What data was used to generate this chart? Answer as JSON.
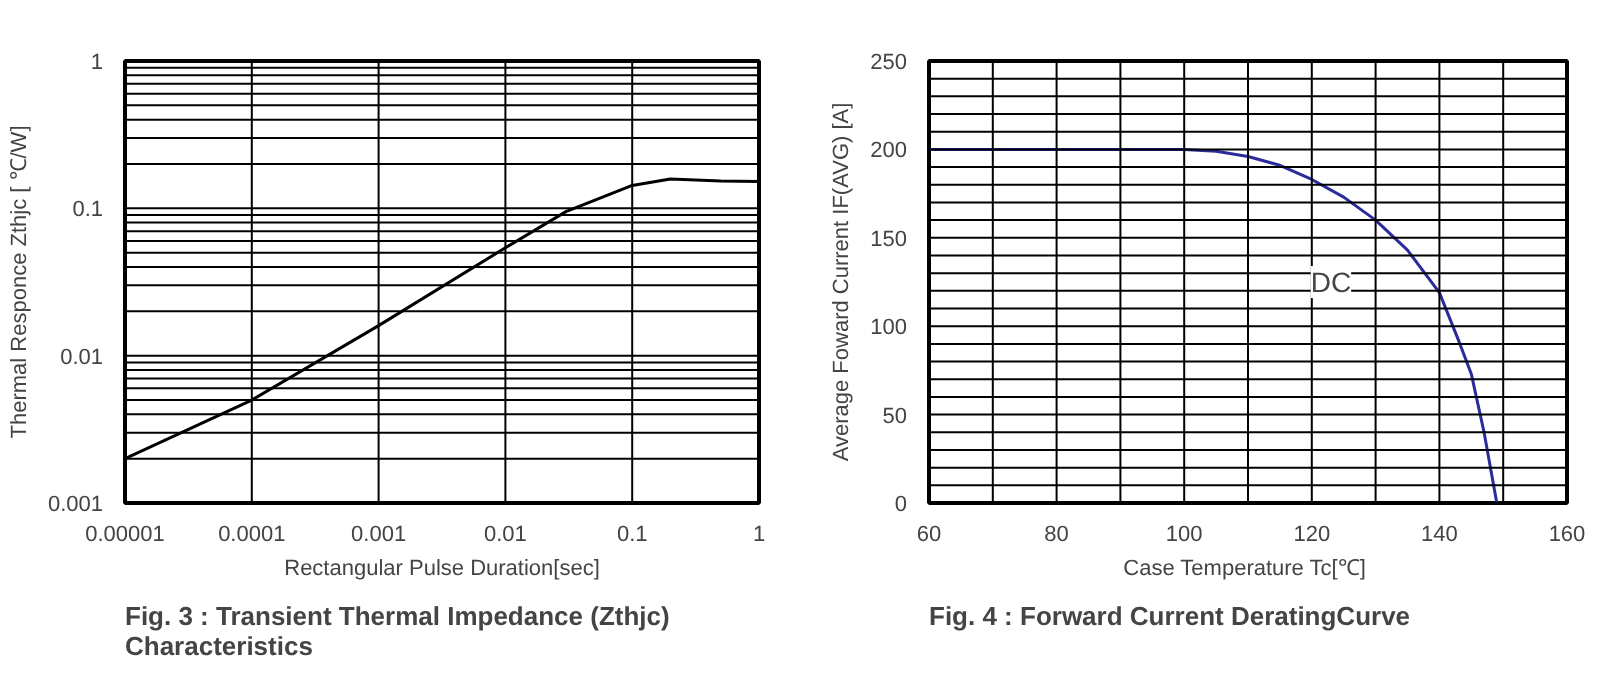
{
  "chart_data": [
    {
      "type": "line",
      "title": "Fig. 3 : Transient Thermal Impedance (Zthjc) Characteristics",
      "xlabel": "Rectangular Pulse Duration[sec]",
      "ylabel": "Thermal Responce Zthjc [ ℃/W]",
      "log": "xy",
      "grid": true,
      "line_style": "solid",
      "x": [
        1e-05,
        0.0001,
        0.001,
        0.01,
        0.03,
        0.1,
        0.2,
        0.5,
        1
      ],
      "series": [
        {
          "color": "#000000",
          "values": [
            0.002,
            0.005,
            0.016,
            0.054,
            0.095,
            0.143,
            0.158,
            0.153,
            0.152
          ]
        }
      ],
      "xlim": [
        1e-05,
        1
      ],
      "ylim": [
        0.001,
        1
      ],
      "xticks": [
        {
          "value": 1e-05,
          "label": "0.00001"
        },
        {
          "value": 0.0001,
          "label": "0.0001"
        },
        {
          "value": 0.001,
          "label": "0.001"
        },
        {
          "value": 0.01,
          "label": "0.01"
        },
        {
          "value": 0.1,
          "label": "0.1"
        },
        1
      ],
      "yticks": [
        {
          "value": 0.001,
          "label": "0.001"
        },
        {
          "value": 0.002,
          "label": null
        },
        {
          "value": 0.003,
          "label": null
        },
        {
          "value": 0.004,
          "label": null
        },
        {
          "value": 0.005,
          "label": null
        },
        {
          "value": 0.006,
          "label": null
        },
        {
          "value": 0.007,
          "label": null
        },
        {
          "value": 0.008,
          "label": null
        },
        {
          "value": 0.009,
          "label": null
        },
        {
          "value": 0.01,
          "label": "0.01"
        },
        {
          "value": 0.02,
          "label": null
        },
        {
          "value": 0.03,
          "label": null
        },
        {
          "value": 0.04,
          "label": null
        },
        {
          "value": 0.05,
          "label": null
        },
        {
          "value": 0.06,
          "label": null
        },
        {
          "value": 0.07,
          "label": null
        },
        {
          "value": 0.08,
          "label": null
        },
        {
          "value": 0.09,
          "label": null
        },
        {
          "value": 0.1,
          "label": "0.1"
        },
        {
          "value": 0.2,
          "label": null
        },
        {
          "value": 0.3,
          "label": null
        },
        {
          "value": 0.4,
          "label": null
        },
        {
          "value": 0.5,
          "label": null
        },
        {
          "value": 0.6,
          "label": null
        },
        {
          "value": 0.7,
          "label": null
        },
        {
          "value": 0.8,
          "label": null
        },
        {
          "value": 0.9,
          "label": null
        },
        1
      ]
    },
    {
      "type": "line",
      "title": "Fig. 4 : Forward Current DeratingCurve",
      "xlabel": "Case Temperature  Tc[℃]",
      "ylabel": "Average Foward Current IF(AVG) [A]",
      "grid": true,
      "line_style": "solid",
      "x": [
        60,
        100,
        105,
        110,
        115,
        120,
        125,
        130,
        135,
        140,
        143,
        145,
        147,
        149
      ],
      "series": [
        {
          "color": "#2b2b9a",
          "values": [
            200,
            200,
            199,
            196,
            191,
            183,
            173,
            160,
            143,
            119,
            92,
            73,
            40,
            0
          ]
        }
      ],
      "xlim": [
        60,
        160
      ],
      "ylim": [
        0,
        250
      ],
      "xticks": [
        60,
        {
          "value": 70,
          "label": null
        },
        80,
        {
          "value": 90,
          "label": null
        },
        100,
        {
          "value": 110,
          "label": null
        },
        120,
        {
          "value": 130,
          "label": null
        },
        140,
        {
          "value": 150,
          "label": null
        },
        160
      ],
      "yticks": [
        0,
        {
          "value": 10,
          "label": null
        },
        {
          "value": 20,
          "label": null
        },
        {
          "value": 30,
          "label": null
        },
        {
          "value": 40,
          "label": null
        },
        50,
        {
          "value": 60,
          "label": null
        },
        {
          "value": 70,
          "label": null
        },
        {
          "value": 80,
          "label": null
        },
        {
          "value": 90,
          "label": null
        },
        100,
        {
          "value": 110,
          "label": null
        },
        {
          "value": 120,
          "label": null
        },
        {
          "value": 130,
          "label": null
        },
        {
          "value": 140,
          "label": null
        },
        150,
        {
          "value": 160,
          "label": null
        },
        {
          "value": 170,
          "label": null
        },
        {
          "value": 180,
          "label": null
        },
        {
          "value": 190,
          "label": null
        },
        200,
        {
          "value": 210,
          "label": null
        },
        {
          "value": 220,
          "label": null
        },
        {
          "value": 230,
          "label": null
        },
        {
          "value": 240,
          "label": null
        },
        250
      ],
      "annotations": [
        "DC"
      ]
    }
  ]
}
